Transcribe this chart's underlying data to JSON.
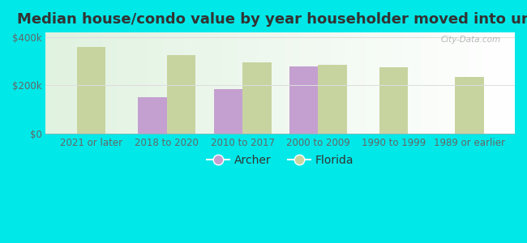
{
  "title": "Median house/condo value by year householder moved into unit",
  "categories": [
    "2021 or later",
    "2018 to 2020",
    "2010 to 2017",
    "2000 to 2009",
    "1990 to 1999",
    "1989 or earlier"
  ],
  "archer_values": [
    null,
    150000,
    185000,
    280000,
    null,
    null
  ],
  "florida_values": [
    360000,
    325000,
    295000,
    285000,
    275000,
    235000
  ],
  "archer_color": "#c4a0d0",
  "florida_color": "#c8d4a0",
  "background_outer": "#00e8e8",
  "yticks": [
    0,
    200000,
    400000
  ],
  "ylabels": [
    "$0",
    "$200k",
    "$400k"
  ],
  "ylim": [
    0,
    420000
  ],
  "bar_width": 0.38,
  "watermark": "City-Data.com",
  "legend_archer": "Archer",
  "legend_florida": "Florida",
  "title_fontsize": 13,
  "axis_label_fontsize": 8.5,
  "legend_fontsize": 10,
  "tick_color": "#666666",
  "grid_color": "#dddddd"
}
